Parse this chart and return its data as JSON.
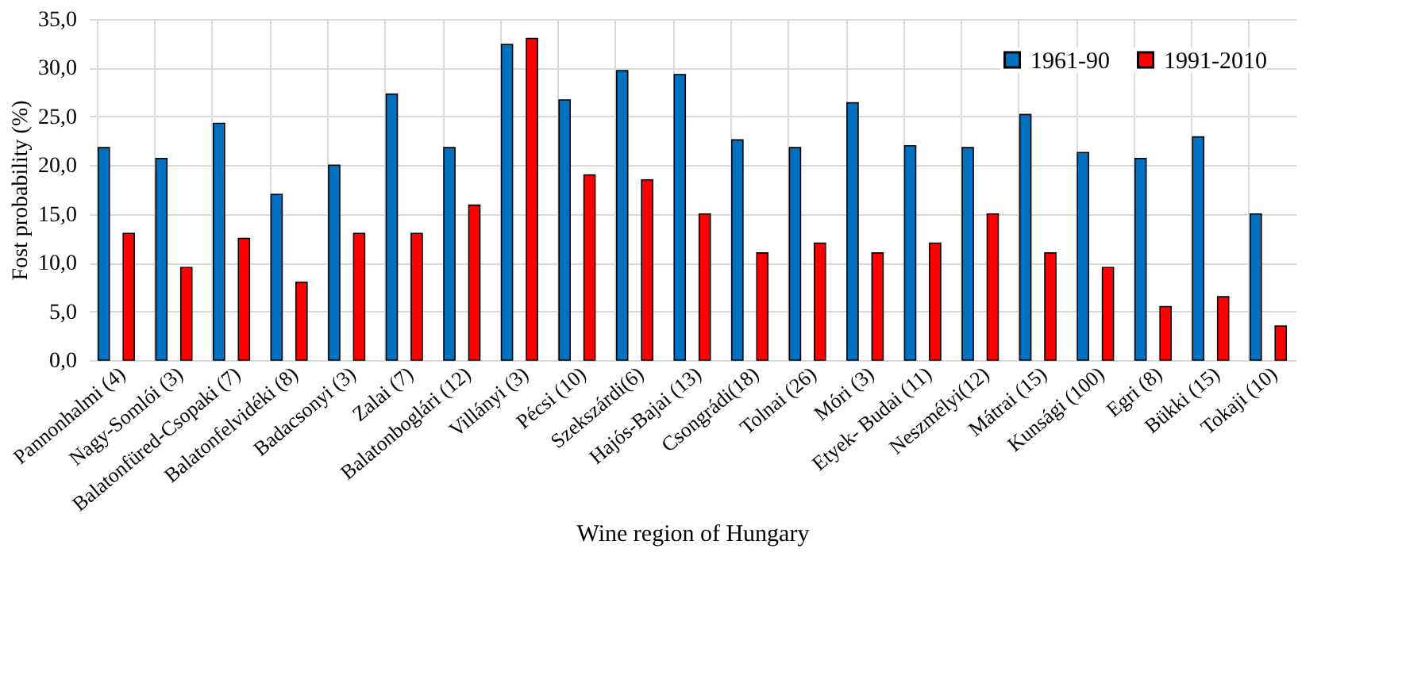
{
  "chart_data": {
    "type": "bar",
    "xlabel": "Wine region of Hungary",
    "ylabel": "Fost probability (%)",
    "categories": [
      "Pannonhalmi (4)",
      "Nagy-Somlói (3)",
      "Balatonfüred-Csopaki (7)",
      "Balatonfelvidéki (8)",
      "Badacsonyi (3)",
      "Zalai (7)",
      "Balatonboglári (12)",
      "Villányi (3)",
      "Pécsi (10)",
      "Szekszárdi(6)",
      "Hajós-Bajai (13)",
      "Csongrádi(18)",
      "Tolnai (26)",
      "Móri (3)",
      "Etyek- Budai (11)",
      "Neszmélyi(12)",
      "Mátrai (15)",
      "Kunsági (100)",
      "Egri  (8)",
      "Bükki (15)",
      "Tokaji (10)"
    ],
    "series": [
      {
        "name": "1961-90",
        "color": "#0070c0",
        "values": [
          21.8,
          20.7,
          24.3,
          17.0,
          20.0,
          27.3,
          21.8,
          32.4,
          26.7,
          29.7,
          29.3,
          22.6,
          21.8,
          26.4,
          22.0,
          21.8,
          25.2,
          21.3,
          20.7,
          22.9,
          15.0
        ]
      },
      {
        "name": "1991-2010",
        "color": "#ff0000",
        "values": [
          13.0,
          9.5,
          12.5,
          8.0,
          13.0,
          13.0,
          15.9,
          33.0,
          19.0,
          18.5,
          15.0,
          11.0,
          12.0,
          11.0,
          12.0,
          15.0,
          11.0,
          9.5,
          5.5,
          6.5,
          3.5
        ]
      }
    ],
    "ylim": [
      0,
      35
    ],
    "yticks": [
      {
        "value": 0,
        "label": "0,0"
      },
      {
        "value": 5,
        "label": "5,0"
      },
      {
        "value": 10,
        "label": "10,0"
      },
      {
        "value": 15,
        "label": "15,0"
      },
      {
        "value": 20,
        "label": "20,0"
      },
      {
        "value": 25,
        "label": "25,0"
      },
      {
        "value": 30,
        "label": "30,0"
      },
      {
        "value": 35,
        "label": "35,0"
      }
    ],
    "grid": true,
    "legend": "top right"
  }
}
